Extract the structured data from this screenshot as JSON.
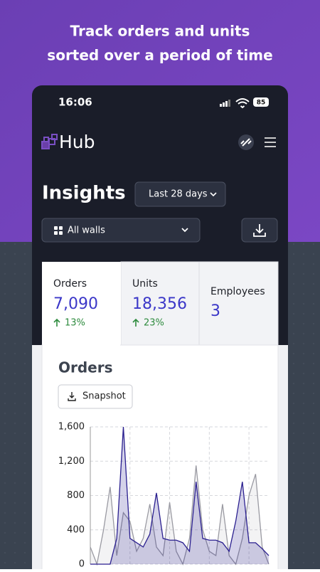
{
  "headline": [
    "Track orders and units",
    "sorted over a period of time"
  ],
  "status_bar": {
    "time": "16:06",
    "battery": "85"
  },
  "app": {
    "logo": "Hub",
    "page_title": "Insights",
    "period_filter": "Last 28 days",
    "wall_filter": "All walls"
  },
  "stats": [
    {
      "label": "Orders",
      "value": "7,090",
      "change": "13%"
    },
    {
      "label": "Units",
      "value": "18,356",
      "change": "23%"
    },
    {
      "label": "Employees",
      "value": "3"
    }
  ],
  "snapshot_button": "Snapshot",
  "chart_data": {
    "type": "line",
    "title": "Orders",
    "categories": [
      null,
      null,
      null,
      null,
      null,
      null,
      null,
      null,
      null,
      null,
      null,
      null,
      null,
      null,
      null,
      null,
      null,
      null,
      null,
      null,
      null,
      null,
      null,
      null,
      null,
      null,
      null,
      null
    ],
    "series": [
      {
        "color": "#9a9aa2",
        "values": [
          200,
          0,
          400,
          900,
          100,
          600,
          500,
          150,
          300,
          700,
          200,
          100,
          720,
          150,
          0,
          300,
          1150,
          400,
          150,
          100,
          700,
          100,
          0,
          300,
          800,
          1050,
          200,
          0
        ]
      },
      {
        "color": "#2a1f8f",
        "values": [
          0,
          0,
          0,
          0,
          300,
          1600,
          300,
          250,
          200,
          350,
          830,
          300,
          280,
          280,
          250,
          150,
          960,
          300,
          280,
          280,
          250,
          150,
          500,
          960,
          250,
          250,
          180,
          100
        ]
      }
    ],
    "ylim": [
      0,
      1600
    ],
    "yticks": [
      0,
      400,
      800,
      {
        "value": 1200,
        "label": "1,200"
      },
      {
        "value": 1600,
        "label": "1,600"
      }
    ],
    "grid": true
  }
}
